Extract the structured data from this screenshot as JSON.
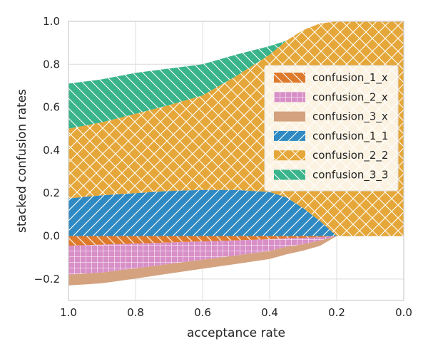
{
  "chart_data": {
    "type": "area",
    "xlabel": "acceptance rate",
    "ylabel": "stacked confusion rates",
    "xlim": [
      1.0,
      0.0
    ],
    "ylim": [
      -0.3,
      1.0
    ],
    "xticks": [
      "1.0",
      "0.8",
      "0.6",
      "0.4",
      "0.2",
      "0.0"
    ],
    "yticks": [
      "−0.2",
      "0.0",
      "0.2",
      "0.4",
      "0.6",
      "0.8",
      "1.0"
    ],
    "x_values": [
      1.0,
      0.9,
      0.8,
      0.7,
      0.6,
      0.5,
      0.4,
      0.35,
      0.3,
      0.25,
      0.2,
      0.18,
      0.15,
      0.1,
      0.0
    ],
    "grid": true,
    "legend_position": "right",
    "series": [
      {
        "name": "confusion_1_x",
        "color": "#de7a2c",
        "hatch": "backslash",
        "sign": "negative",
        "values": [
          0.045,
          0.04,
          0.035,
          0.03,
          0.025,
          0.02,
          0.015,
          0.01,
          0.008,
          0.006,
          0.0,
          0.0,
          0.0,
          0.0,
          0.0
        ]
      },
      {
        "name": "confusion_2_x",
        "color": "#d88fc7",
        "hatch": "grid",
        "sign": "negative",
        "values": [
          0.135,
          0.13,
          0.115,
          0.1,
          0.085,
          0.07,
          0.055,
          0.04,
          0.03,
          0.015,
          0.0,
          0.0,
          0.0,
          0.0,
          0.0
        ]
      },
      {
        "name": "confusion_3_x",
        "color": "#d4a27f",
        "hatch": "none",
        "sign": "negative",
        "values": [
          0.05,
          0.05,
          0.048,
          0.045,
          0.042,
          0.04,
          0.037,
          0.035,
          0.03,
          0.025,
          0.0,
          0.0,
          0.0,
          0.0,
          0.0
        ]
      },
      {
        "name": "confusion_1_1",
        "color": "#2f8ac4",
        "hatch": "slash",
        "sign": "positive",
        "values": [
          0.175,
          0.19,
          0.2,
          0.21,
          0.215,
          0.215,
          0.205,
          0.18,
          0.13,
          0.07,
          0.0,
          0.0,
          0.0,
          0.0,
          0.0
        ]
      },
      {
        "name": "confusion_2_2",
        "color": "#e5a73a",
        "hatch": "cross",
        "sign": "positive",
        "values": [
          0.325,
          0.34,
          0.37,
          0.4,
          0.44,
          0.53,
          0.64,
          0.73,
          0.83,
          0.92,
          1.0,
          1.0,
          1.0,
          1.0,
          1.0
        ]
      },
      {
        "name": "confusion_3_3",
        "color": "#3ab48a",
        "hatch": "backslash",
        "sign": "positive",
        "values": [
          0.21,
          0.2,
          0.19,
          0.17,
          0.145,
          0.1,
          0.04,
          0.0,
          0.0,
          0.0,
          0.0,
          0.0,
          0.0,
          0.0,
          0.0
        ]
      }
    ],
    "legend": [
      "confusion_1_x",
      "confusion_2_x",
      "confusion_3_x",
      "confusion_1_1",
      "confusion_2_2",
      "confusion_3_3"
    ]
  }
}
